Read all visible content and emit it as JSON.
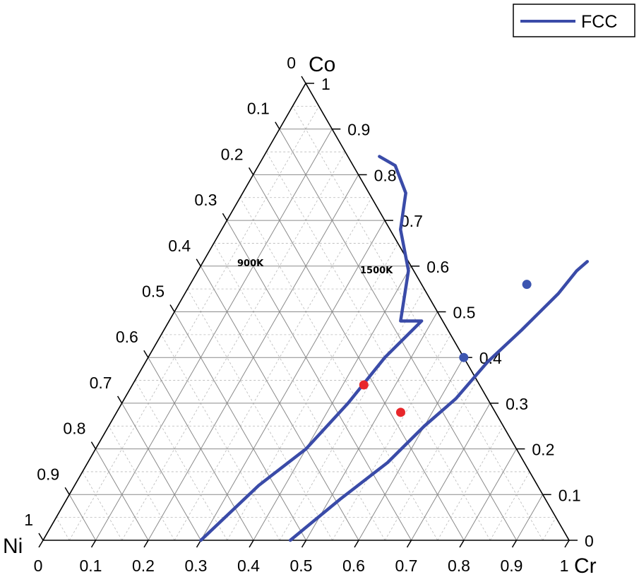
{
  "chart_data": {
    "type": "ternary",
    "vertices": {
      "top": "Co",
      "left": "Ni",
      "right": "Cr"
    },
    "ticks": [
      "0",
      "0.1",
      "0.2",
      "0.3",
      "0.4",
      "0.5",
      "0.6",
      "0.7",
      "0.8",
      "0.9",
      "1"
    ],
    "grid": true,
    "legend": {
      "position": "top-right",
      "entries": [
        {
          "name": "FCC",
          "color": "#3a4ba8"
        }
      ]
    },
    "series": [
      {
        "name": "FCC",
        "annotation": "900K",
        "color": "#3a4ba8",
        "points": [
          {
            "cr": 0.3,
            "co": 0.0
          },
          {
            "cr": 0.35,
            "co": 0.12
          },
          {
            "cr": 0.4,
            "co": 0.2
          },
          {
            "cr": 0.43,
            "co": 0.3
          },
          {
            "cr": 0.45,
            "co": 0.4
          },
          {
            "cr": 0.48,
            "co": 0.48
          },
          {
            "cr": 0.44,
            "co": 0.48
          },
          {
            "cr": 0.4,
            "co": 0.59
          },
          {
            "cr": 0.34,
            "co": 0.68
          },
          {
            "cr": 0.31,
            "co": 0.76
          },
          {
            "cr": 0.26,
            "co": 0.82
          },
          {
            "cr": 0.22,
            "co": 0.84
          }
        ]
      },
      {
        "name": "FCC",
        "annotation": "1500K",
        "color": "#3a4ba8",
        "points": [
          {
            "cr": 0.47,
            "co": 0.0
          },
          {
            "cr": 0.52,
            "co": 0.09
          },
          {
            "cr": 0.57,
            "co": 0.17
          },
          {
            "cr": 0.6,
            "co": 0.25
          },
          {
            "cr": 0.63,
            "co": 0.31
          },
          {
            "cr": 0.65,
            "co": 0.39
          },
          {
            "cr": 0.68,
            "co": 0.46
          },
          {
            "cr": 0.71,
            "co": 0.54
          },
          {
            "cr": 0.72,
            "co": 0.59
          },
          {
            "cr": 0.73,
            "co": 0.61
          }
        ]
      }
    ],
    "markers": [
      {
        "color": "#3c55b0",
        "cr": 0.64,
        "co": 0.56
      },
      {
        "color": "#3c55b0",
        "cr": 0.6,
        "co": 0.4
      },
      {
        "color": "#e8262a",
        "cr": 0.44,
        "co": 0.34
      },
      {
        "color": "#e8262a",
        "cr": 0.54,
        "co": 0.28
      }
    ]
  }
}
